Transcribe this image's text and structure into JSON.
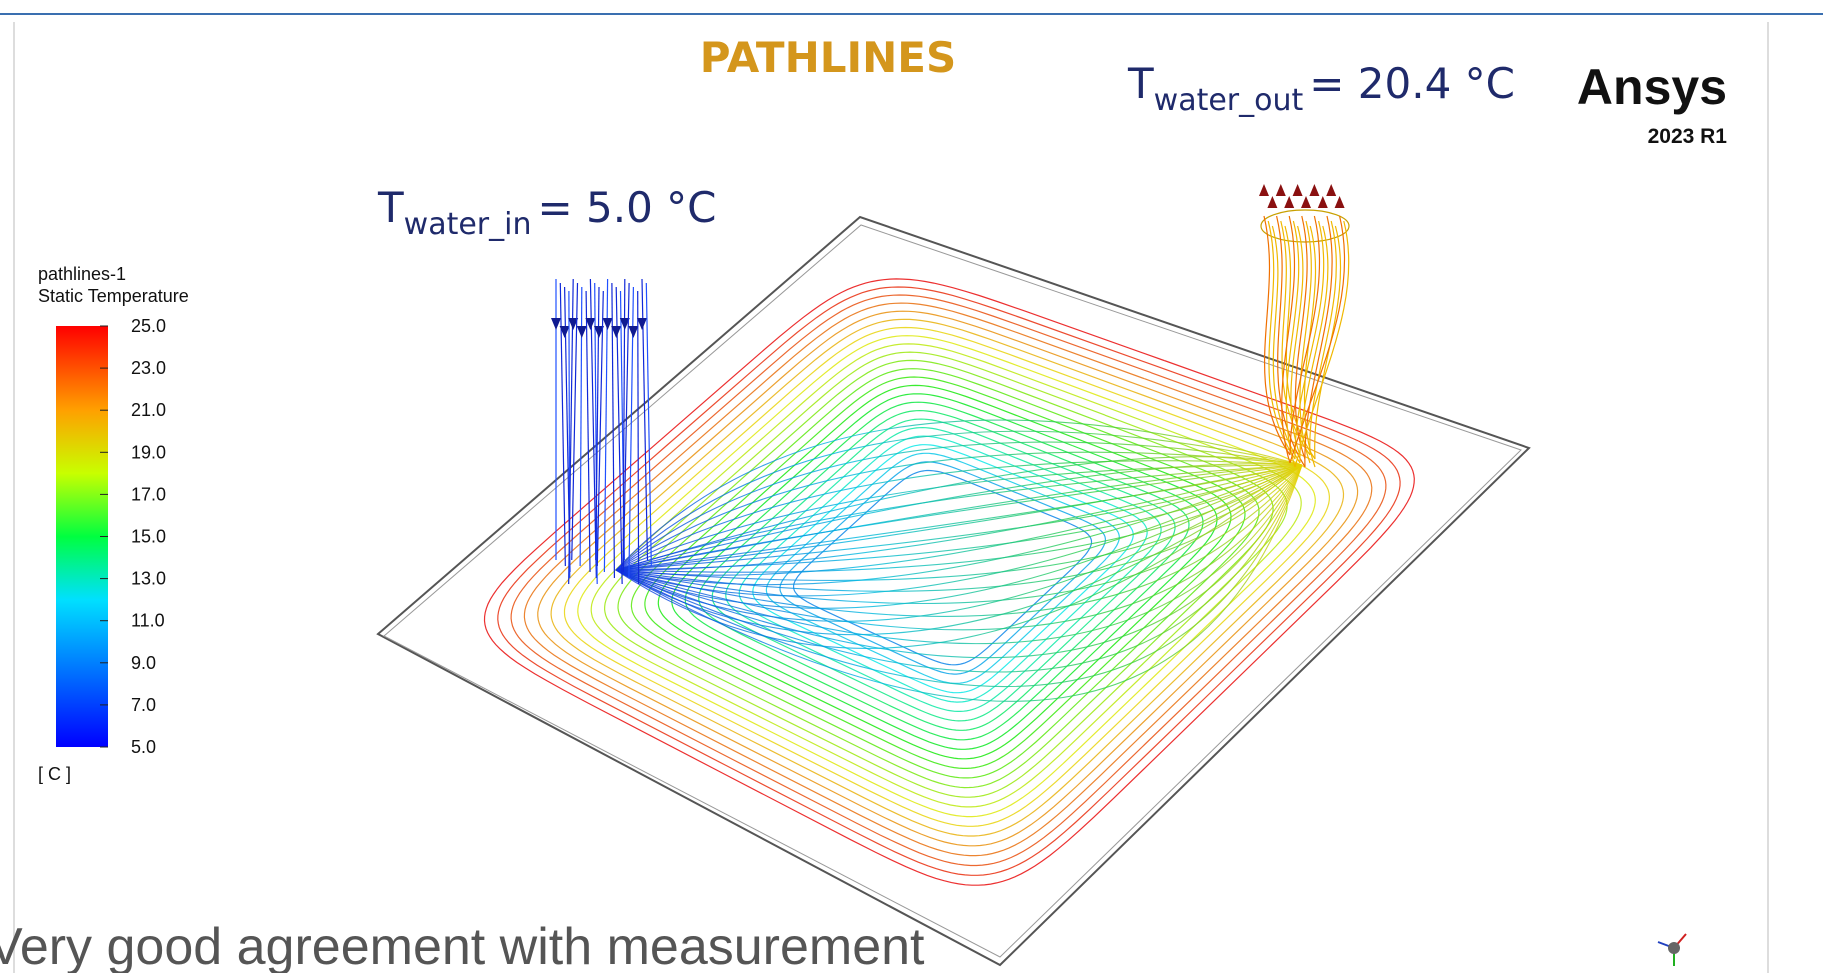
{
  "header": {
    "title": "PATHLINES"
  },
  "outlet_label": {
    "symbol": "T",
    "subscript": "water_out",
    "value": "= 20.4 °C"
  },
  "inlet_label": {
    "symbol": "T",
    "subscript": "water_in",
    "value": "= 5.0 °C"
  },
  "logo": {
    "name": "Ansys",
    "version": "2023 R1"
  },
  "legend": {
    "title": "pathlines-1",
    "subtitle": "Static Temperature",
    "unit": "[ C ]",
    "ticks": [
      {
        "value": 25,
        "label": "25.0"
      },
      {
        "value": 23,
        "label": "23.0"
      },
      {
        "value": 21,
        "label": "21.0"
      },
      {
        "value": 19,
        "label": "19.0"
      },
      {
        "value": 17,
        "label": "17.0"
      },
      {
        "value": 15,
        "label": "15.0"
      },
      {
        "value": 13,
        "label": "13.0"
      },
      {
        "value": 11,
        "label": "11.0"
      },
      {
        "value": 9,
        "label": "9.0"
      },
      {
        "value": 7,
        "label": "7.0"
      },
      {
        "value": 5,
        "label": "5.0"
      }
    ]
  },
  "footer": {
    "text": "Very good agreement with measurement"
  }
}
